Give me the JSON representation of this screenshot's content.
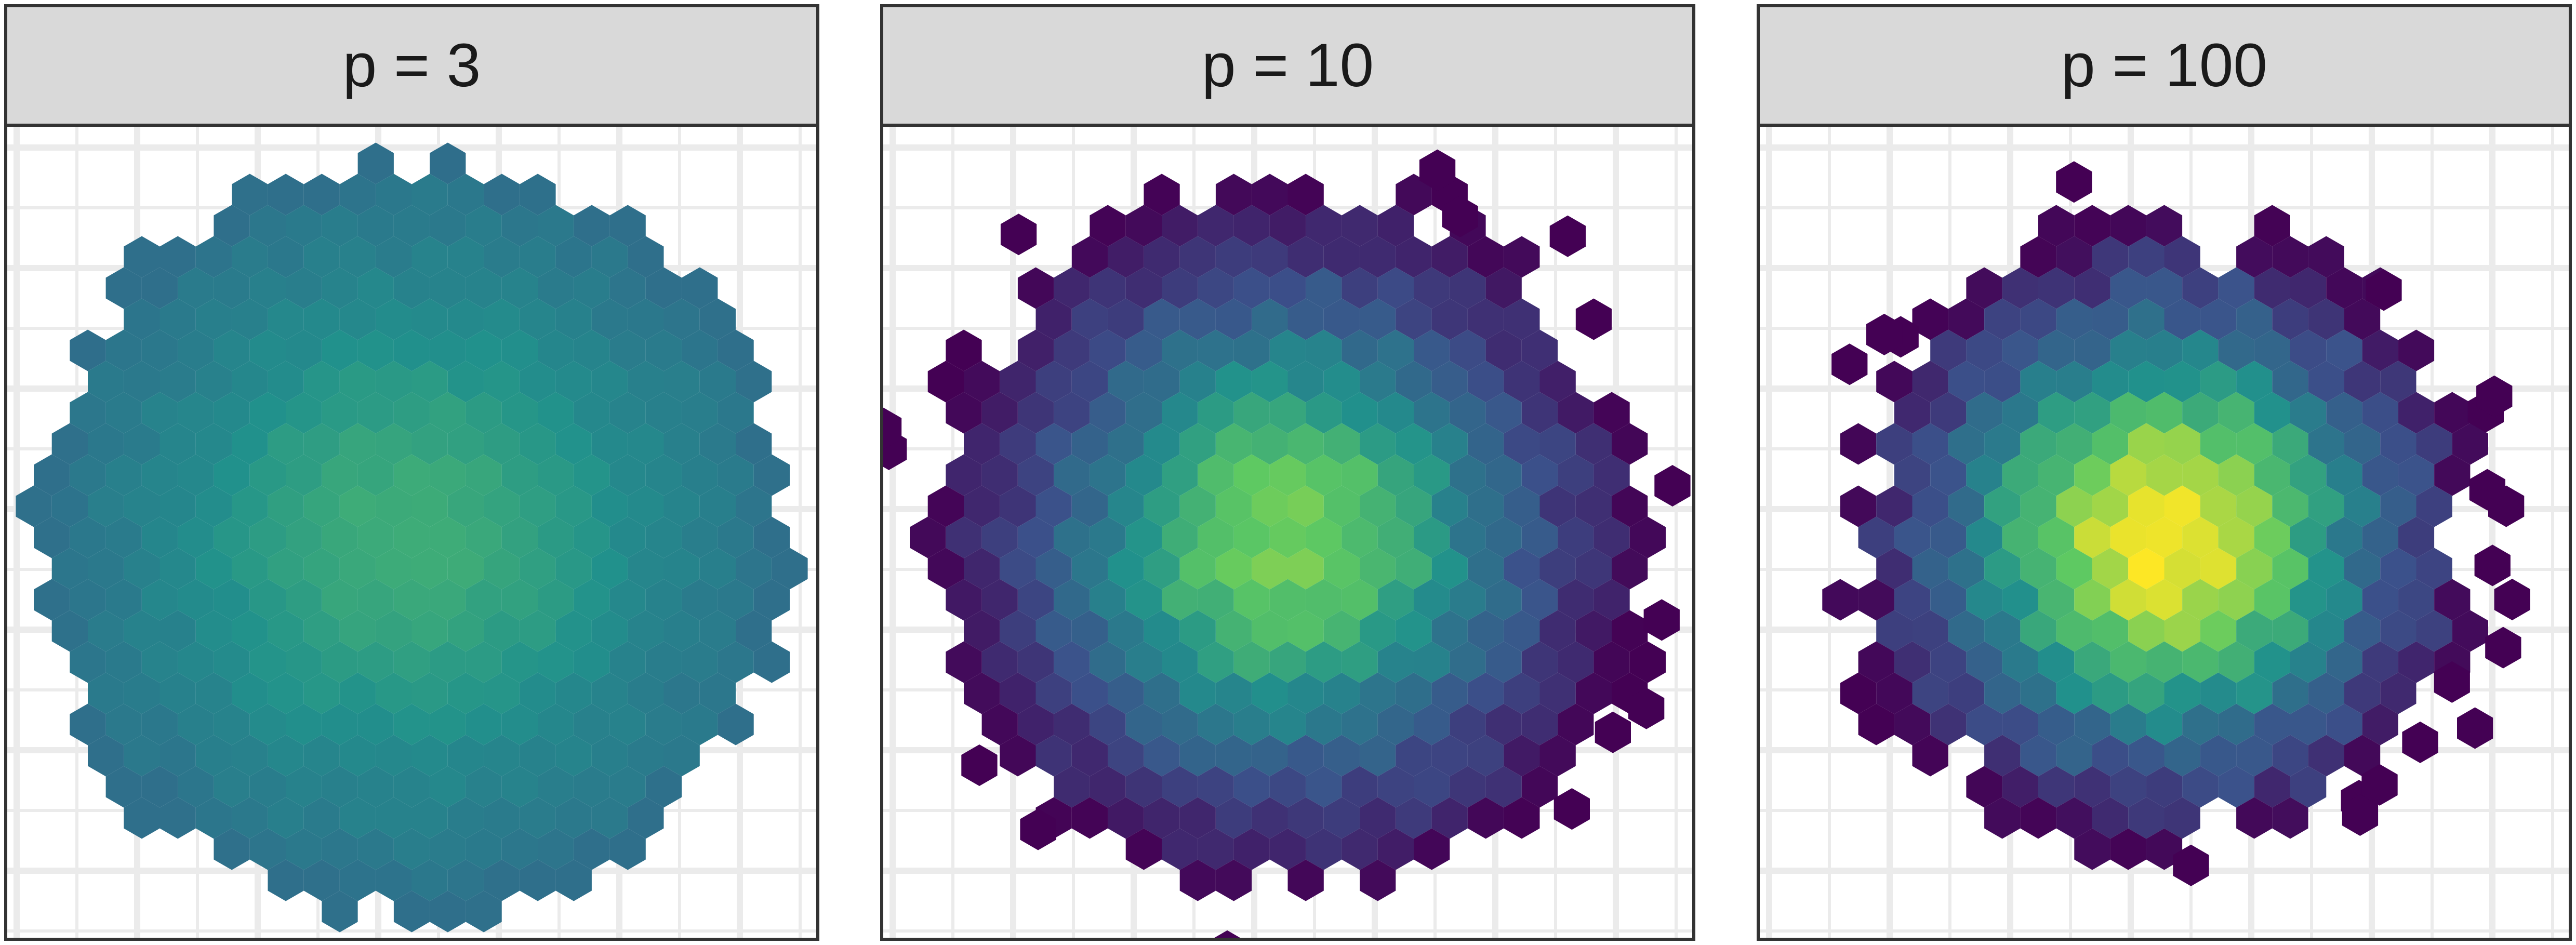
{
  "chart_data": [
    {
      "type": "hexbin",
      "panel_label": "p = 3",
      "spread": 0.94,
      "edge_noise": 0.04,
      "color_min": 0.36,
      "color_max": 0.62,
      "outliers": 0,
      "seed": 3,
      "colormap": [
        "#440154",
        "#3b528b",
        "#21918c",
        "#5ec962",
        "#fde725"
      ]
    },
    {
      "type": "hexbin",
      "panel_label": "p = 10",
      "spread": 0.88,
      "edge_noise": 0.08,
      "color_min": 0.0,
      "color_max": 0.8,
      "outliers": 14,
      "seed": 10,
      "colormap": [
        "#440154",
        "#3b528b",
        "#21918c",
        "#5ec962",
        "#fde725"
      ]
    },
    {
      "type": "hexbin",
      "panel_label": "p = 100",
      "spread": 0.78,
      "edge_noise": 0.12,
      "color_min": 0.0,
      "color_max": 1.0,
      "outliers": 18,
      "seed": 100,
      "colormap": [
        "#440154",
        "#3b528b",
        "#21918c",
        "#5ec962",
        "#fde725"
      ]
    }
  ]
}
